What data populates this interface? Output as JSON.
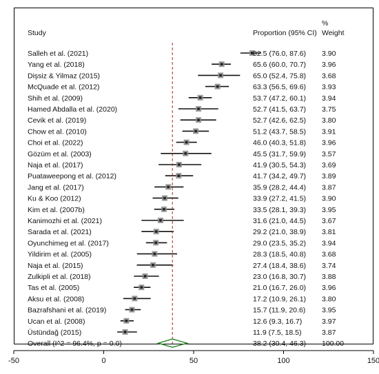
{
  "header": {
    "study": "Study",
    "proportion": "Proportion (95% CI)",
    "weight_top": "%",
    "weight_bottom": "Weight"
  },
  "colors": {
    "ci_line": "#111111",
    "point": "#222222",
    "ref_line": "#b22222",
    "diamond": "#2e8b2e",
    "frame": "#000000"
  },
  "chart_data": {
    "type": "forest",
    "reference_line": 38.2,
    "xlim": [
      -50,
      150
    ],
    "xticks": [
      "-50",
      "0",
      "50",
      "100",
      "150"
    ],
    "xtick_values": [
      -50,
      0,
      50,
      100,
      150
    ],
    "studies": [
      {
        "label": "Salleh et al. (2021)",
        "est": 82.5,
        "lo": 76.0,
        "hi": 87.6,
        "ci_text": "82.5 (76.0, 87.6)",
        "weight": "3.90"
      },
      {
        "label": "Yang et al. (2018)",
        "est": 65.6,
        "lo": 60.0,
        "hi": 70.7,
        "ci_text": "65.6 (60.0, 70.7)",
        "weight": "3.96"
      },
      {
        "label": "Dişsiz & Yilmaz (2015)",
        "est": 65.0,
        "lo": 52.4,
        "hi": 75.8,
        "ci_text": "65.0 (52.4, 75.8)",
        "weight": "3.68"
      },
      {
        "label": "McQuade et al. (2012)",
        "est": 63.3,
        "lo": 56.5,
        "hi": 69.6,
        "ci_text": "63.3 (56.5, 69.6)",
        "weight": "3.93"
      },
      {
        "label": "Shih et al. (2009)",
        "est": 53.7,
        "lo": 47.2,
        "hi": 60.1,
        "ci_text": "53.7 (47.2, 60.1)",
        "weight": "3.94"
      },
      {
        "label": "Hamed Abdalla et al. (2020)",
        "est": 52.7,
        "lo": 41.5,
        "hi": 63.7,
        "ci_text": "52.7 (41.5, 63.7)",
        "weight": "3.75"
      },
      {
        "label": "Cevik et al. (2019)",
        "est": 52.7,
        "lo": 42.6,
        "hi": 62.5,
        "ci_text": "52.7 (42.6, 62.5)",
        "weight": "3.80"
      },
      {
        "label": "Chow et al. (2010)",
        "est": 51.2,
        "lo": 43.7,
        "hi": 58.5,
        "ci_text": "51.2 (43.7, 58.5)",
        "weight": "3.91"
      },
      {
        "label": "Choi et al. (2022)",
        "est": 46.0,
        "lo": 40.3,
        "hi": 51.8,
        "ci_text": "46.0 (40.3, 51.8)",
        "weight": "3.96"
      },
      {
        "label": "Gözüm et al. (2003)",
        "est": 45.5,
        "lo": 31.7,
        "hi": 59.9,
        "ci_text": "45.5 (31.7, 59.9)",
        "weight": "3.57"
      },
      {
        "label": "Naja et al. (2017)",
        "est": 41.9,
        "lo": 30.5,
        "hi": 54.3,
        "ci_text": "41.9 (30.5, 54.3)",
        "weight": "3.69"
      },
      {
        "label": "Puataweepong et al. (2012)",
        "est": 41.7,
        "lo": 34.2,
        "hi": 49.7,
        "ci_text": "41.7 (34.2, 49.7)",
        "weight": "3.89"
      },
      {
        "label": "Jang et al. (2017)",
        "est": 35.9,
        "lo": 28.2,
        "hi": 44.4,
        "ci_text": "35.9 (28.2, 44.4)",
        "weight": "3.87"
      },
      {
        "label": "Ku & Koo (2012)",
        "est": 33.9,
        "lo": 27.2,
        "hi": 41.5,
        "ci_text": "33.9 (27.2, 41.5)",
        "weight": "3.90"
      },
      {
        "label": "Kim et al. (2007b)",
        "est": 33.5,
        "lo": 28.1,
        "hi": 39.3,
        "ci_text": "33.5 (28.1, 39.3)",
        "weight": "3.95"
      },
      {
        "label": "Kanimozhi et al. (2021)",
        "est": 31.6,
        "lo": 21.0,
        "hi": 44.5,
        "ci_text": "31.6 (21.0, 44.5)",
        "weight": "3.67"
      },
      {
        "label": "Sarada et al. (2021)",
        "est": 29.2,
        "lo": 21.0,
        "hi": 38.9,
        "ci_text": "29.2 (21.0, 38.9)",
        "weight": "3.81"
      },
      {
        "label": "Oyunchimeg et al. (2017)",
        "est": 29.0,
        "lo": 23.5,
        "hi": 35.2,
        "ci_text": "29.0 (23.5, 35.2)",
        "weight": "3.94"
      },
      {
        "label": "Yildirim et al. (2005)",
        "est": 28.3,
        "lo": 18.5,
        "hi": 40.8,
        "ci_text": "28.3 (18.5, 40.8)",
        "weight": "3.68"
      },
      {
        "label": "Naja et al. (2015)",
        "est": 27.4,
        "lo": 18.4,
        "hi": 38.6,
        "ci_text": "27.4 (18.4, 38.6)",
        "weight": "3.74"
      },
      {
        "label": "Zulkipli et al. (2018)",
        "est": 23.0,
        "lo": 16.8,
        "hi": 30.7,
        "ci_text": "23.0 (16.8, 30.7)",
        "weight": "3.88"
      },
      {
        "label": "Tas et al. (2005)",
        "est": 21.0,
        "lo": 16.7,
        "hi": 26.0,
        "ci_text": "21.0 (16.7, 26.0)",
        "weight": "3.96"
      },
      {
        "label": "Aksu et al. (2008)",
        "est": 17.2,
        "lo": 10.9,
        "hi": 26.1,
        "ci_text": "17.2 (10.9, 26.1)",
        "weight": "3.80"
      },
      {
        "label": "Bazrafshani et al. (2019)",
        "est": 15.7,
        "lo": 11.9,
        "hi": 20.6,
        "ci_text": "15.7 (11.9, 20.6)",
        "weight": "3.95"
      },
      {
        "label": "Ucan et al. (2008)",
        "est": 12.6,
        "lo": 9.3,
        "hi": 16.7,
        "ci_text": "12.6 (9.3, 16.7)",
        "weight": "3.97"
      },
      {
        "label": "Üstündağ (2015)",
        "est": 11.9,
        "lo": 7.5,
        "hi": 18.5,
        "ci_text": "11.9 (7.5, 18.5)",
        "weight": "3.87"
      }
    ],
    "overall": {
      "label": "Overall  (I^2 = 96.4%, p = 0.0)",
      "est": 38.2,
      "lo": 30.4,
      "hi": 46.3,
      "ci_text": "38.2 (30.4, 46.3)",
      "weight": "100.00"
    }
  }
}
